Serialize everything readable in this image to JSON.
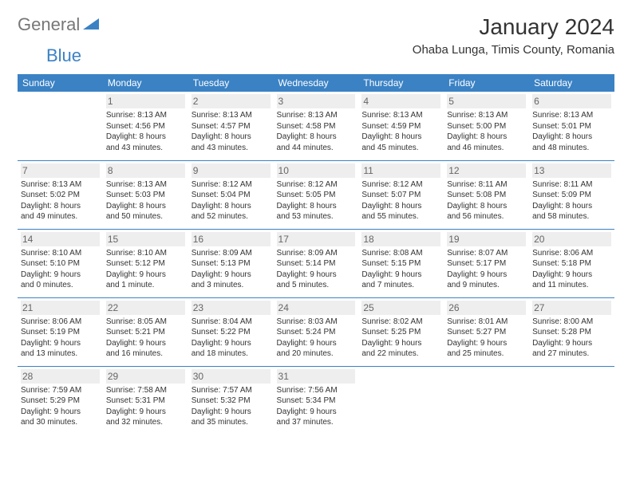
{
  "brand": {
    "name1": "General",
    "name2": "Blue",
    "text_color": "#777777",
    "accent_color": "#3b82c4"
  },
  "header": {
    "title": "January 2024",
    "location": "Ohaba Lunga, Timis County, Romania"
  },
  "weekdays": [
    "Sunday",
    "Monday",
    "Tuesday",
    "Wednesday",
    "Thursday",
    "Friday",
    "Saturday"
  ],
  "style": {
    "header_bg": "#3b82c4",
    "header_fg": "#ffffff",
    "divider_color": "#3b82c4",
    "daynum_bg": "#eeeeee",
    "daynum_color": "#666666",
    "cell_text_color": "#333333",
    "page_bg": "#ffffff",
    "font_family": "Arial, Helvetica, sans-serif",
    "title_fontsize": 28,
    "location_fontsize": 15,
    "weekday_fontsize": 12,
    "daynum_fontsize": 12,
    "cell_fontsize": 10
  },
  "weeks": [
    [
      {
        "day": "",
        "sunrise": "",
        "sunset": "",
        "daylight1": "",
        "daylight2": ""
      },
      {
        "day": "1",
        "sunrise": "Sunrise: 8:13 AM",
        "sunset": "Sunset: 4:56 PM",
        "daylight1": "Daylight: 8 hours",
        "daylight2": "and 43 minutes."
      },
      {
        "day": "2",
        "sunrise": "Sunrise: 8:13 AM",
        "sunset": "Sunset: 4:57 PM",
        "daylight1": "Daylight: 8 hours",
        "daylight2": "and 43 minutes."
      },
      {
        "day": "3",
        "sunrise": "Sunrise: 8:13 AM",
        "sunset": "Sunset: 4:58 PM",
        "daylight1": "Daylight: 8 hours",
        "daylight2": "and 44 minutes."
      },
      {
        "day": "4",
        "sunrise": "Sunrise: 8:13 AM",
        "sunset": "Sunset: 4:59 PM",
        "daylight1": "Daylight: 8 hours",
        "daylight2": "and 45 minutes."
      },
      {
        "day": "5",
        "sunrise": "Sunrise: 8:13 AM",
        "sunset": "Sunset: 5:00 PM",
        "daylight1": "Daylight: 8 hours",
        "daylight2": "and 46 minutes."
      },
      {
        "day": "6",
        "sunrise": "Sunrise: 8:13 AM",
        "sunset": "Sunset: 5:01 PM",
        "daylight1": "Daylight: 8 hours",
        "daylight2": "and 48 minutes."
      }
    ],
    [
      {
        "day": "7",
        "sunrise": "Sunrise: 8:13 AM",
        "sunset": "Sunset: 5:02 PM",
        "daylight1": "Daylight: 8 hours",
        "daylight2": "and 49 minutes."
      },
      {
        "day": "8",
        "sunrise": "Sunrise: 8:13 AM",
        "sunset": "Sunset: 5:03 PM",
        "daylight1": "Daylight: 8 hours",
        "daylight2": "and 50 minutes."
      },
      {
        "day": "9",
        "sunrise": "Sunrise: 8:12 AM",
        "sunset": "Sunset: 5:04 PM",
        "daylight1": "Daylight: 8 hours",
        "daylight2": "and 52 minutes."
      },
      {
        "day": "10",
        "sunrise": "Sunrise: 8:12 AM",
        "sunset": "Sunset: 5:05 PM",
        "daylight1": "Daylight: 8 hours",
        "daylight2": "and 53 minutes."
      },
      {
        "day": "11",
        "sunrise": "Sunrise: 8:12 AM",
        "sunset": "Sunset: 5:07 PM",
        "daylight1": "Daylight: 8 hours",
        "daylight2": "and 55 minutes."
      },
      {
        "day": "12",
        "sunrise": "Sunrise: 8:11 AM",
        "sunset": "Sunset: 5:08 PM",
        "daylight1": "Daylight: 8 hours",
        "daylight2": "and 56 minutes."
      },
      {
        "day": "13",
        "sunrise": "Sunrise: 8:11 AM",
        "sunset": "Sunset: 5:09 PM",
        "daylight1": "Daylight: 8 hours",
        "daylight2": "and 58 minutes."
      }
    ],
    [
      {
        "day": "14",
        "sunrise": "Sunrise: 8:10 AM",
        "sunset": "Sunset: 5:10 PM",
        "daylight1": "Daylight: 9 hours",
        "daylight2": "and 0 minutes."
      },
      {
        "day": "15",
        "sunrise": "Sunrise: 8:10 AM",
        "sunset": "Sunset: 5:12 PM",
        "daylight1": "Daylight: 9 hours",
        "daylight2": "and 1 minute."
      },
      {
        "day": "16",
        "sunrise": "Sunrise: 8:09 AM",
        "sunset": "Sunset: 5:13 PM",
        "daylight1": "Daylight: 9 hours",
        "daylight2": "and 3 minutes."
      },
      {
        "day": "17",
        "sunrise": "Sunrise: 8:09 AM",
        "sunset": "Sunset: 5:14 PM",
        "daylight1": "Daylight: 9 hours",
        "daylight2": "and 5 minutes."
      },
      {
        "day": "18",
        "sunrise": "Sunrise: 8:08 AM",
        "sunset": "Sunset: 5:15 PM",
        "daylight1": "Daylight: 9 hours",
        "daylight2": "and 7 minutes."
      },
      {
        "day": "19",
        "sunrise": "Sunrise: 8:07 AM",
        "sunset": "Sunset: 5:17 PM",
        "daylight1": "Daylight: 9 hours",
        "daylight2": "and 9 minutes."
      },
      {
        "day": "20",
        "sunrise": "Sunrise: 8:06 AM",
        "sunset": "Sunset: 5:18 PM",
        "daylight1": "Daylight: 9 hours",
        "daylight2": "and 11 minutes."
      }
    ],
    [
      {
        "day": "21",
        "sunrise": "Sunrise: 8:06 AM",
        "sunset": "Sunset: 5:19 PM",
        "daylight1": "Daylight: 9 hours",
        "daylight2": "and 13 minutes."
      },
      {
        "day": "22",
        "sunrise": "Sunrise: 8:05 AM",
        "sunset": "Sunset: 5:21 PM",
        "daylight1": "Daylight: 9 hours",
        "daylight2": "and 16 minutes."
      },
      {
        "day": "23",
        "sunrise": "Sunrise: 8:04 AM",
        "sunset": "Sunset: 5:22 PM",
        "daylight1": "Daylight: 9 hours",
        "daylight2": "and 18 minutes."
      },
      {
        "day": "24",
        "sunrise": "Sunrise: 8:03 AM",
        "sunset": "Sunset: 5:24 PM",
        "daylight1": "Daylight: 9 hours",
        "daylight2": "and 20 minutes."
      },
      {
        "day": "25",
        "sunrise": "Sunrise: 8:02 AM",
        "sunset": "Sunset: 5:25 PM",
        "daylight1": "Daylight: 9 hours",
        "daylight2": "and 22 minutes."
      },
      {
        "day": "26",
        "sunrise": "Sunrise: 8:01 AM",
        "sunset": "Sunset: 5:27 PM",
        "daylight1": "Daylight: 9 hours",
        "daylight2": "and 25 minutes."
      },
      {
        "day": "27",
        "sunrise": "Sunrise: 8:00 AM",
        "sunset": "Sunset: 5:28 PM",
        "daylight1": "Daylight: 9 hours",
        "daylight2": "and 27 minutes."
      }
    ],
    [
      {
        "day": "28",
        "sunrise": "Sunrise: 7:59 AM",
        "sunset": "Sunset: 5:29 PM",
        "daylight1": "Daylight: 9 hours",
        "daylight2": "and 30 minutes."
      },
      {
        "day": "29",
        "sunrise": "Sunrise: 7:58 AM",
        "sunset": "Sunset: 5:31 PM",
        "daylight1": "Daylight: 9 hours",
        "daylight2": "and 32 minutes."
      },
      {
        "day": "30",
        "sunrise": "Sunrise: 7:57 AM",
        "sunset": "Sunset: 5:32 PM",
        "daylight1": "Daylight: 9 hours",
        "daylight2": "and 35 minutes."
      },
      {
        "day": "31",
        "sunrise": "Sunrise: 7:56 AM",
        "sunset": "Sunset: 5:34 PM",
        "daylight1": "Daylight: 9 hours",
        "daylight2": "and 37 minutes."
      },
      {
        "day": "",
        "sunrise": "",
        "sunset": "",
        "daylight1": "",
        "daylight2": ""
      },
      {
        "day": "",
        "sunrise": "",
        "sunset": "",
        "daylight1": "",
        "daylight2": ""
      },
      {
        "day": "",
        "sunrise": "",
        "sunset": "",
        "daylight1": "",
        "daylight2": ""
      }
    ]
  ]
}
